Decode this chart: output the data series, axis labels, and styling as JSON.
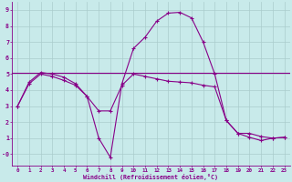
{
  "xlabel": "Windchill (Refroidissement éolien,°C)",
  "bg_color": "#c8eaea",
  "grid_color": "#aacccc",
  "line_color": "#880088",
  "ylim": [
    -0.7,
    9.5
  ],
  "xlim": [
    -0.5,
    23.5
  ],
  "yticks": [
    0,
    1,
    2,
    3,
    4,
    5,
    6,
    7,
    8,
    9
  ],
  "ytick_labels": [
    "-0",
    "1",
    "2",
    "3",
    "4",
    "5",
    "6",
    "7",
    "8",
    "9"
  ],
  "xticks": [
    0,
    1,
    2,
    3,
    4,
    5,
    6,
    7,
    8,
    9,
    10,
    11,
    12,
    13,
    14,
    15,
    16,
    17,
    18,
    19,
    20,
    21,
    22,
    23
  ],
  "series1_x": [
    0,
    1,
    2,
    3,
    4,
    5,
    6,
    7,
    8,
    9,
    10,
    11,
    12,
    13,
    14,
    15,
    16,
    17,
    18,
    19,
    20,
    21,
    22,
    23
  ],
  "series1_y": [
    3.0,
    4.5,
    5.1,
    5.0,
    4.8,
    4.4,
    3.6,
    1.0,
    -0.2,
    4.4,
    6.6,
    7.3,
    8.3,
    8.8,
    8.85,
    8.5,
    7.0,
    5.0,
    2.1,
    1.3,
    1.05,
    0.85,
    1.0,
    1.05
  ],
  "series2_x": [
    0,
    1,
    2,
    3,
    4,
    5,
    6,
    7,
    8,
    9,
    10,
    11,
    12,
    13,
    14,
    15,
    16,
    17,
    18,
    19,
    20,
    21,
    22,
    23
  ],
  "series2_y": [
    3.0,
    4.4,
    5.0,
    4.85,
    4.6,
    4.3,
    3.6,
    2.7,
    2.7,
    4.3,
    5.0,
    4.85,
    4.7,
    4.55,
    4.5,
    4.45,
    4.3,
    4.2,
    2.1,
    1.3,
    1.3,
    1.1,
    1.0,
    1.05
  ],
  "series3_x": [
    -0.5,
    23.5
  ],
  "series3_y": [
    5.1,
    5.1
  ]
}
